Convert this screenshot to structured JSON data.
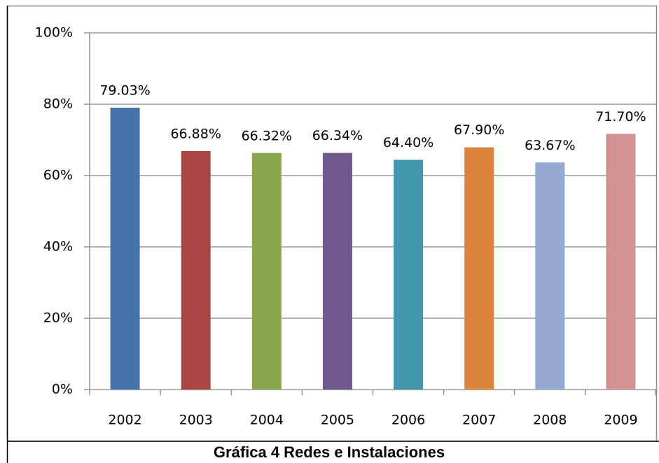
{
  "chart_data": {
    "type": "bar",
    "title": "Gráfica 4 Redes e Instalaciones",
    "categories": [
      "2002",
      "2003",
      "2004",
      "2005",
      "2006",
      "2007",
      "2008",
      "2009"
    ],
    "values": [
      79.03,
      66.88,
      66.32,
      66.34,
      64.4,
      67.9,
      63.67,
      71.7
    ],
    "value_labels": [
      "79.03%",
      "66.88%",
      "66.32%",
      "66.34%",
      "64.40%",
      "67.90%",
      "63.67%",
      "71.70%"
    ],
    "colors": [
      "#4572a7",
      "#aa4643",
      "#89a54e",
      "#71588f",
      "#4198af",
      "#db843d",
      "#93a9cf",
      "#d19392"
    ],
    "ylim": [
      0,
      100
    ],
    "yticks": [
      {
        "value": 0,
        "label": "0%"
      },
      {
        "value": 20,
        "label": "20%"
      },
      {
        "value": 40,
        "label": "40%"
      },
      {
        "value": 60,
        "label": "60%"
      },
      {
        "value": 80,
        "label": "80%"
      },
      {
        "value": 100,
        "label": "100%"
      }
    ],
    "grid": true
  }
}
